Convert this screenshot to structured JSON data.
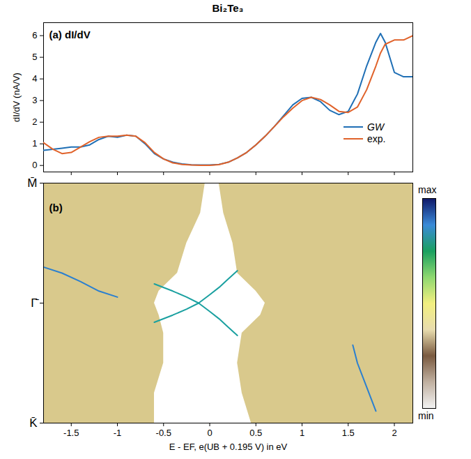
{
  "chart_data": [
    {
      "type": "line",
      "title": "Bi₂Te₃",
      "panel_label": "(a) dI/dV",
      "y_label": "dI/dV (nA/V)",
      "x": [
        -1.8,
        -1.7,
        -1.6,
        -1.5,
        -1.4,
        -1.3,
        -1.2,
        -1.1,
        -1.0,
        -0.9,
        -0.8,
        -0.7,
        -0.6,
        -0.5,
        -0.4,
        -0.3,
        -0.2,
        -0.1,
        0,
        0.1,
        0.2,
        0.3,
        0.4,
        0.5,
        0.6,
        0.7,
        0.8,
        0.9,
        1.0,
        1.1,
        1.2,
        1.3,
        1.4,
        1.5,
        1.6,
        1.7,
        1.8,
        1.85,
        1.9,
        2.0,
        2.1,
        2.2
      ],
      "series": [
        {
          "name": "GW",
          "color": "#1f6fb5",
          "values": [
            0.7,
            0.75,
            0.8,
            0.85,
            0.85,
            0.95,
            1.2,
            1.35,
            1.3,
            1.4,
            1.35,
            1.0,
            0.55,
            0.3,
            0.15,
            0.07,
            0.03,
            0.02,
            0.02,
            0.05,
            0.15,
            0.35,
            0.6,
            0.95,
            1.35,
            1.8,
            2.3,
            2.8,
            3.1,
            3.15,
            2.95,
            2.55,
            2.35,
            2.5,
            3.3,
            4.6,
            5.7,
            6.1,
            5.7,
            4.3,
            4.1,
            4.1
          ]
        },
        {
          "name": "exp.",
          "color": "#e0622a",
          "values": [
            1.05,
            0.75,
            0.55,
            0.6,
            0.85,
            1.1,
            1.3,
            1.35,
            1.35,
            1.4,
            1.35,
            1.05,
            0.6,
            0.3,
            0.12,
            0.05,
            0.02,
            0.01,
            0.01,
            0.04,
            0.15,
            0.35,
            0.6,
            0.95,
            1.35,
            1.8,
            2.25,
            2.65,
            3.0,
            3.15,
            3.05,
            2.8,
            2.5,
            2.45,
            2.7,
            3.5,
            4.6,
            5.2,
            5.6,
            5.8,
            5.8,
            6.0
          ]
        }
      ],
      "xlim": [
        -1.8,
        2.2
      ],
      "xticks": [
        -1.5,
        -1,
        -0.5,
        0,
        0.5,
        1,
        1.5,
        2
      ],
      "ylim": [
        -0.3,
        6.6
      ],
      "yticks": [
        0,
        1,
        2,
        3,
        4,
        5,
        6
      ],
      "tick_labels": "y",
      "legend": "bottom-right"
    },
    {
      "type": "band_structure",
      "panel_label": "(b)",
      "x_label": "E - EF, e(UB + 0.195 V) in eV",
      "xlim": [
        -1.8,
        2.2
      ],
      "xticks": [
        -1.5,
        -1,
        -0.5,
        0,
        0.5,
        1,
        1.5,
        2
      ],
      "ylim": [
        -1,
        1
      ],
      "yticks": [
        {
          "value": 1,
          "label": "M̄"
        },
        {
          "value": 0,
          "label": "Γ̄"
        },
        {
          "value": -1,
          "label": "K̄"
        }
      ],
      "regions": [
        {
          "color": "#d9c98c",
          "k": [
            -1,
            -0.75,
            -0.5,
            -0.25,
            -0.1,
            0,
            0.1,
            0.25,
            0.5,
            0.75,
            1
          ],
          "E_lo": [
            -1.8,
            -1.8,
            -1.8,
            -1.8,
            -1.8,
            -1.8,
            -1.8,
            -1.8,
            -1.8,
            -1.8,
            -1.8
          ],
          "E_hi": [
            -0.6,
            -0.6,
            -0.5,
            -0.5,
            -0.55,
            -0.6,
            -0.55,
            -0.35,
            -0.25,
            -0.1,
            -0.05
          ]
        },
        {
          "color": "#d9c98c",
          "k": [
            -1,
            -0.75,
            -0.5,
            -0.25,
            -0.1,
            0,
            0.1,
            0.25,
            0.5,
            0.75,
            1
          ],
          "E_lo": [
            0.45,
            0.35,
            0.3,
            0.35,
            0.55,
            0.6,
            0.5,
            0.3,
            0.25,
            0.15,
            0.1
          ],
          "E_hi": [
            2.2,
            2.2,
            2.2,
            2.2,
            2.2,
            2.2,
            2.2,
            2.2,
            2.2,
            2.2,
            2.2
          ]
        }
      ],
      "lines": [
        {
          "color": "#1aa0a0",
          "x": [
            -0.12,
            0,
            0.1,
            0.2,
            0.3
          ],
          "y": [
            0,
            0.07,
            0.13,
            0.2,
            0.27
          ]
        },
        {
          "color": "#1aa0a0",
          "x": [
            -0.12,
            0,
            0.1,
            0.2,
            0.3
          ],
          "y": [
            0,
            -0.07,
            -0.13,
            -0.2,
            -0.27
          ]
        },
        {
          "color": "#1aa0a0",
          "x": [
            -0.12,
            -0.25,
            -0.4,
            -0.6
          ],
          "y": [
            0,
            0.05,
            0.1,
            0.16
          ]
        },
        {
          "color": "#1aa0a0",
          "x": [
            -0.12,
            -0.25,
            -0.4,
            -0.6
          ],
          "y": [
            0,
            -0.05,
            -0.1,
            -0.16
          ]
        },
        {
          "color": "#2a7fd0",
          "x": [
            -1.8,
            -1.6,
            -1.4,
            -1.2,
            -1.0
          ],
          "y": [
            0.3,
            0.25,
            0.18,
            0.1,
            0.05
          ]
        },
        {
          "color": "#2a7fd0",
          "x": [
            1.55,
            1.6,
            1.7,
            1.8
          ],
          "y": [
            -0.35,
            -0.5,
            -0.7,
            -0.9
          ]
        }
      ],
      "colorbar": {
        "colors": [
          "#f2f2f2",
          "#c0b0a0",
          "#7a5a40",
          "#e8dcae",
          "#f2ef80",
          "#8ed870",
          "#1aa060",
          "#3a8ad8",
          "#101a6a"
        ],
        "labels": [
          "max",
          "min"
        ]
      }
    }
  ]
}
